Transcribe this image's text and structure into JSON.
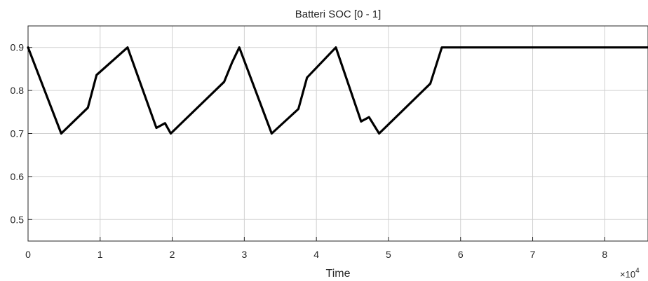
{
  "chart_data": {
    "type": "line",
    "title": "Batteri SOC [0 - 1]",
    "xlabel": "Time",
    "x_multiplier": "10",
    "x_multiplier_exp": "4",
    "xlim": [
      0,
      8.6
    ],
    "ylim": [
      0.45,
      0.95
    ],
    "xticks": [
      0,
      1,
      2,
      3,
      4,
      5,
      6,
      7,
      8
    ],
    "xtick_labels": [
      "0",
      "1",
      "2",
      "3",
      "4",
      "5",
      "6",
      "7",
      "8"
    ],
    "yticks": [
      0.5,
      0.6,
      0.7,
      0.8,
      0.9
    ],
    "ytick_labels": [
      "0.5",
      "0.6",
      "0.7",
      "0.8",
      "0.9"
    ],
    "grid": true,
    "line_color": "#000000",
    "series": [
      {
        "x": [
          0,
          0.46,
          0.83,
          0.95,
          1.38,
          1.78,
          1.9,
          1.98,
          2.72,
          2.83,
          2.93,
          3.38,
          3.75,
          3.87,
          4.27,
          4.62,
          4.73,
          4.87,
          5.58,
          5.74,
          8.6
        ],
        "y": [
          0.9,
          0.7,
          0.76,
          0.836,
          0.9,
          0.713,
          0.724,
          0.7,
          0.82,
          0.865,
          0.9,
          0.7,
          0.757,
          0.83,
          0.9,
          0.728,
          0.738,
          0.7,
          0.816,
          0.9,
          0.9
        ]
      }
    ]
  }
}
